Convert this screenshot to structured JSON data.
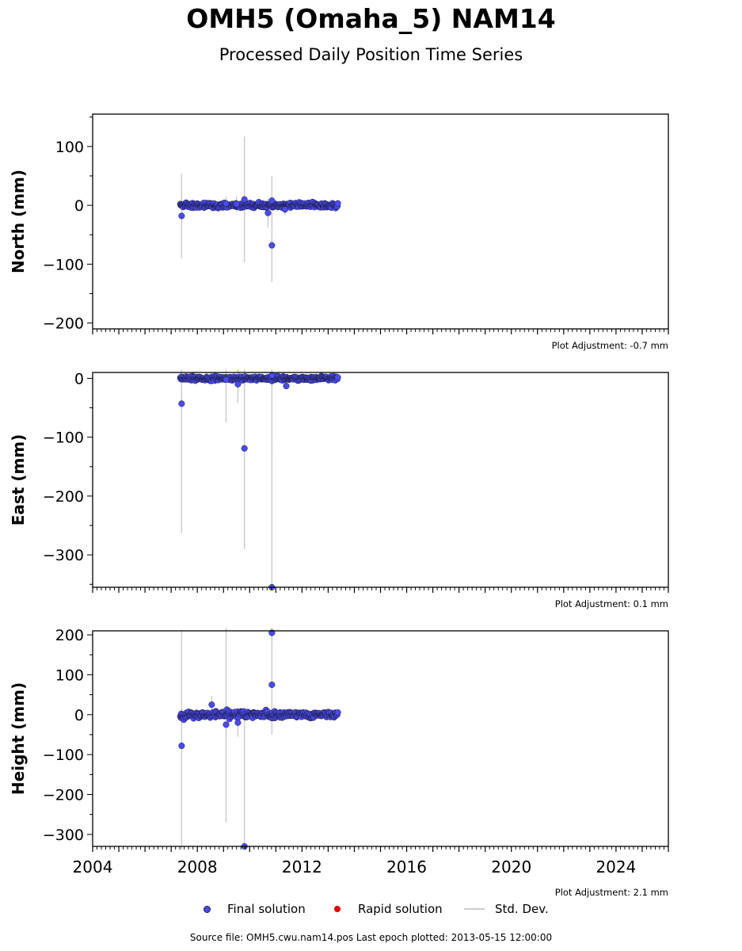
{
  "header": {
    "title": "OMH5 (Omaha_5) NAM14",
    "subtitle": "Processed Daily Position Time Series"
  },
  "legend": {
    "final_label": "Final solution",
    "rapid_label": "Rapid solution",
    "std_label": "Std. Dev."
  },
  "footer": "Source file: OMH5.cwu.nam14.pos  Last epoch plotted: 2013-05-15 12:00:00",
  "colors": {
    "final": "#4b4bf0",
    "final_edge": "#1a1a3a",
    "rapid": "#e00000",
    "std": "#cccccc"
  },
  "chart_data": [
    {
      "type": "scatter",
      "ylabel": "North (mm)",
      "xlim": [
        2004.0,
        2026.0
      ],
      "ylim": [
        -210,
        155
      ],
      "yticks": [
        100,
        0,
        -100,
        -200
      ],
      "ytick_labels": [
        "100",
        "0",
        "−100",
        "−200"
      ],
      "xticks": [
        2004,
        2008,
        2012,
        2016,
        2020,
        2024
      ],
      "xtick_labels": [],
      "adjustment": "Plot Adjustment: -0.7 mm",
      "series_range": [
        2007.35,
        2013.37
      ],
      "noise": 6,
      "outliers": [
        {
          "x": 2007.4,
          "y": -18,
          "err": 72
        },
        {
          "x": 2009.8,
          "y": 10,
          "err": 107
        },
        {
          "x": 2010.7,
          "y": -13,
          "err": 25
        },
        {
          "x": 2010.85,
          "y": -68,
          "err": 62
        },
        {
          "x": 2010.85,
          "y": 8,
          "err": 42
        },
        {
          "x": 2011.35,
          "y": -7,
          "err": 10
        },
        {
          "x": 2009.5,
          "y": 2,
          "err": 13
        },
        {
          "x": 2009.1,
          "y": 3,
          "err": 12
        }
      ]
    },
    {
      "type": "scatter",
      "ylabel": "East (mm)",
      "xlim": [
        2004.0,
        2026.0
      ],
      "ylim": [
        -355,
        10
      ],
      "yticks": [
        0,
        -100,
        -200,
        -300
      ],
      "ytick_labels": [
        "0",
        "−100",
        "−200",
        "−300"
      ],
      "xticks": [
        2004,
        2008,
        2012,
        2016,
        2020,
        2024
      ],
      "xtick_labels": [],
      "adjustment": "Plot Adjustment: 0.1 mm",
      "series_range": [
        2007.35,
        2013.37
      ],
      "noise": 5,
      "outliers": [
        {
          "x": 2007.4,
          "y": -43,
          "err": 220
        },
        {
          "x": 2009.8,
          "y": -119,
          "err": 171
        },
        {
          "x": 2010.85,
          "y": -355,
          "err": 245
        },
        {
          "x": 2010.85,
          "y": 5,
          "err": 125
        },
        {
          "x": 2011.4,
          "y": -13,
          "err": 4
        },
        {
          "x": 2009.55,
          "y": -10,
          "err": 32
        },
        {
          "x": 2009.1,
          "y": -2,
          "err": 73
        }
      ]
    },
    {
      "type": "scatter",
      "ylabel": "Height (mm)",
      "xlim": [
        2004.0,
        2026.0
      ],
      "ylim": [
        -330,
        210
      ],
      "yticks": [
        200,
        100,
        0,
        -100,
        -200,
        -300
      ],
      "ytick_labels": [
        "200",
        "100",
        "0",
        "−100",
        "−200",
        "−300"
      ],
      "xticks": [
        2004,
        2008,
        2012,
        2016,
        2020,
        2024
      ],
      "xtick_labels": [
        "2004",
        "2008",
        "2012",
        "2016",
        "2020",
        "2024"
      ],
      "adjustment": "Plot Adjustment: 2.1 mm",
      "series_range": [
        2007.35,
        2013.37
      ],
      "noise": 12,
      "outliers": [
        {
          "x": 2007.4,
          "y": -78,
          "err": 290
        },
        {
          "x": 2009.8,
          "y": -330,
          "err": 340
        },
        {
          "x": 2010.85,
          "y": 75,
          "err": 125
        },
        {
          "x": 2010.85,
          "y": 205,
          "err": 30
        },
        {
          "x": 2009.1,
          "y": -25,
          "err": 245
        },
        {
          "x": 2009.55,
          "y": -20,
          "err": 35
        },
        {
          "x": 2008.55,
          "y": 25,
          "err": 22
        }
      ]
    }
  ]
}
